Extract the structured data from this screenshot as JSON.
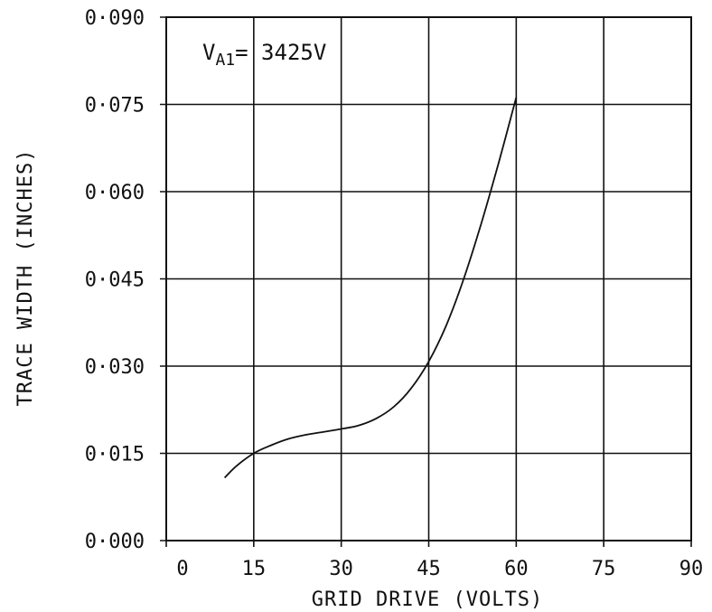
{
  "chart_data": {
    "type": "line",
    "title": "",
    "xlabel": "GRID DRIVE (VOLTS)",
    "ylabel": "TRACE WIDTH (INCHES)",
    "xlim": [
      0,
      90
    ],
    "ylim": [
      0.0,
      0.09
    ],
    "x_ticks": [
      0,
      15,
      30,
      45,
      60,
      75,
      90
    ],
    "x_tick_labels": [
      "0",
      "15",
      "30",
      "45",
      "60",
      "75",
      "90"
    ],
    "y_ticks": [
      0.0,
      0.015,
      0.03,
      0.045,
      0.06,
      0.075,
      0.09
    ],
    "y_tick_labels": [
      "0·000",
      "0·015",
      "0·030",
      "0·045",
      "0·060",
      "0·075",
      "0·090"
    ],
    "grid": true,
    "annotation": {
      "main": "V",
      "sub": "A1",
      "rest": "= 3425V"
    },
    "series": [
      {
        "x": [
          10,
          12,
          15,
          18,
          21,
          24,
          27,
          30,
          33,
          36,
          39,
          42,
          45,
          48,
          51,
          54,
          57,
          60
        ],
        "y": [
          0.0108,
          0.0128,
          0.015,
          0.0164,
          0.0175,
          0.0182,
          0.0187,
          0.0192,
          0.0198,
          0.021,
          0.023,
          0.0262,
          0.0308,
          0.037,
          0.045,
          0.0545,
          0.065,
          0.0762
        ]
      }
    ]
  }
}
